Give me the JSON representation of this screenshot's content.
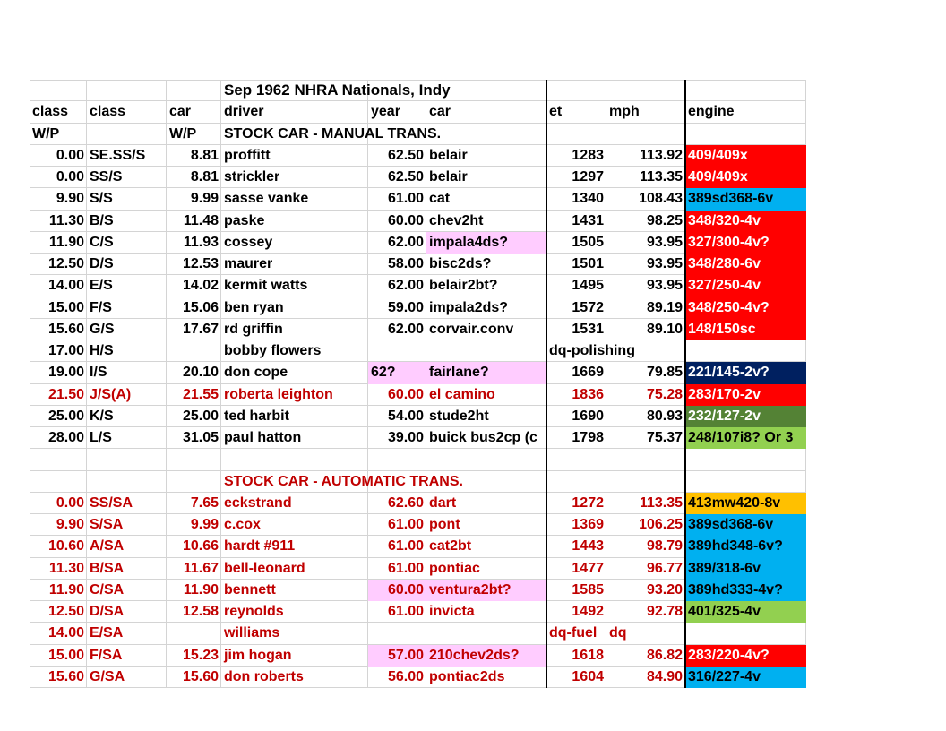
{
  "table": {
    "rows": [
      {
        "cells": [
          null,
          null,
          null,
          "Sep 1962 NHRA Nationals, Indy",
          null,
          null,
          null,
          null,
          null
        ]
      },
      {
        "cells": [
          "class",
          "class",
          "car",
          "driver",
          "year",
          "car",
          "et",
          "mph",
          "engine"
        ]
      },
      {
        "cells": [
          "W/P",
          null,
          "W/P",
          "STOCK CAR - MANUAL TRANS.",
          null,
          null,
          null,
          null,
          null
        ]
      },
      {
        "cells": [
          "0.00",
          "SE.SS/S",
          "8.81",
          "proffitt",
          "62.50",
          "belair",
          "1283",
          "113.92",
          {
            "text": "409/409x",
            "fill": "#ff0000",
            "color": "#ffffff"
          }
        ]
      },
      {
        "cells": [
          "0.00",
          "SS/S",
          "8.81",
          "strickler",
          "62.50",
          "belair",
          "1297",
          "113.35",
          {
            "text": "409/409x",
            "fill": "#ff0000",
            "color": "#ffffff"
          }
        ]
      },
      {
        "cells": [
          "9.90",
          "S/S",
          "9.99",
          "sasse vanke",
          "61.00",
          "cat",
          "1340",
          "108.43",
          {
            "text": "389sd368-6v",
            "fill": "#00b0f0",
            "color": "#000000"
          }
        ]
      },
      {
        "cells": [
          "11.30",
          "B/S",
          "11.48",
          "paske",
          "60.00",
          "chev2ht",
          "1431",
          "98.25",
          {
            "text": "348/320-4v",
            "fill": "#ff0000",
            "color": "#ffffff"
          }
        ]
      },
      {
        "cells": [
          "11.90",
          "C/S",
          "11.93",
          "cossey",
          "62.00",
          {
            "text": "impala4ds?",
            "fill": "#ffccff"
          },
          "1505",
          "93.95",
          {
            "text": "327/300-4v?",
            "fill": "#ff0000",
            "color": "#ffffff"
          }
        ]
      },
      {
        "cells": [
          "12.50",
          "D/S",
          "12.53",
          "maurer",
          "58.00",
          "bisc2ds?",
          "1501",
          "93.95",
          {
            "text": "348/280-6v",
            "fill": "#ff0000",
            "color": "#ffffff"
          }
        ]
      },
      {
        "cells": [
          "14.00",
          "E/S",
          "14.02",
          "kermit watts",
          "62.00",
          "belair2bt?",
          "1495",
          "93.95",
          {
            "text": "327/250-4v",
            "fill": "#ff0000",
            "color": "#ffffff"
          }
        ]
      },
      {
        "cells": [
          "15.00",
          "F/S",
          "15.06",
          "ben ryan",
          "59.00",
          "impala2ds?",
          "1572",
          "89.19",
          {
            "text": "348/250-4v?",
            "fill": "#ff0000",
            "color": "#ffffff"
          }
        ]
      },
      {
        "cells": [
          "15.60",
          "G/S",
          "17.67",
          "rd griffin",
          "62.00",
          "corvair.conv",
          "1531",
          "89.10",
          {
            "text": "148/150sc",
            "fill": "#ff0000",
            "color": "#ffffff"
          }
        ]
      },
      {
        "cells": [
          "17.00",
          "H/S",
          null,
          "bobby flowers",
          null,
          null,
          "dq-polishing",
          null,
          null
        ]
      },
      {
        "cells": [
          "19.00",
          "I/S",
          "20.10",
          "don cope",
          {
            "text": "62?",
            "fill": "#ffccff"
          },
          {
            "text": "fairlane?",
            "fill": "#ffccff"
          },
          "1669",
          "79.85",
          {
            "text": "221/145-2v?",
            "fill": "#002060",
            "color": "#ffffff"
          }
        ]
      },
      {
        "cells": [
          "21.50",
          "J/S(A)",
          "21.55",
          "roberta leighton",
          "60.00",
          "el camino",
          "1836",
          "75.28",
          {
            "text": "283/170-2v",
            "fill": "#ff0000",
            "color": "#ffffff"
          }
        ],
        "color": "#c00000"
      },
      {
        "cells": [
          "25.00",
          "K/S",
          "25.00",
          "ted harbit",
          "54.00",
          "stude2ht",
          "1690",
          "80.93",
          {
            "text": "232/127-2v",
            "fill": "#548235",
            "color": "#ffffff"
          }
        ]
      },
      {
        "cells": [
          "28.00",
          "L/S",
          "31.05",
          "paul hatton",
          "39.00",
          "buick bus2cp (c",
          "1798",
          "75.37",
          {
            "text": "248/107i8? Or 3",
            "fill": "#92d050",
            "color": "#000000"
          }
        ]
      },
      {
        "cells": [
          null,
          null,
          null,
          null,
          null,
          null,
          null,
          null,
          null
        ]
      },
      {
        "cells": [
          null,
          null,
          null,
          "STOCK CAR - AUTOMATIC TRANS.",
          null,
          null,
          null,
          null,
          null
        ],
        "color": "#c00000"
      },
      {
        "cells": [
          "0.00",
          "SS/SA",
          "7.65",
          "eckstrand",
          "62.60",
          "dart",
          "1272",
          "113.35",
          {
            "text": "413mw420-8v",
            "fill": "#ffc000",
            "color": "#000000"
          }
        ],
        "color": "#c00000"
      },
      {
        "cells": [
          "9.90",
          "S/SA",
          "9.99",
          "c.cox",
          "61.00",
          "pont",
          "1369",
          "106.25",
          {
            "text": "389sd368-6v",
            "fill": "#00b0f0",
            "color": "#000000"
          }
        ],
        "color": "#c00000"
      },
      {
        "cells": [
          "10.60",
          "A/SA",
          "10.66",
          "hardt #911",
          "61.00",
          "cat2bt",
          "1443",
          "98.79",
          {
            "text": "389hd348-6v?",
            "fill": "#00b0f0",
            "color": "#000000"
          }
        ],
        "color": "#c00000"
      },
      {
        "cells": [
          "11.30",
          "B/SA",
          "11.67",
          "bell-leonard",
          "61.00",
          "pontiac",
          "1477",
          "96.77",
          {
            "text": "389/318-6v",
            "fill": "#00b0f0",
            "color": "#000000"
          }
        ],
        "color": "#c00000"
      },
      {
        "cells": [
          "11.90",
          "C/SA",
          "11.90",
          "bennett",
          {
            "text": "60.00",
            "fill": "#ffccff"
          },
          {
            "text": "ventura2bt?",
            "fill": "#ffccff"
          },
          "1585",
          "93.20",
          {
            "text": "389hd333-4v?",
            "fill": "#00b0f0",
            "color": "#000000"
          }
        ],
        "color": "#c00000"
      },
      {
        "cells": [
          "12.50",
          "D/SA",
          "12.58",
          "reynolds",
          "61.00",
          "invicta",
          "1492",
          "92.78",
          {
            "text": "401/325-4v",
            "fill": "#92d050",
            "color": "#000000"
          }
        ],
        "color": "#c00000"
      },
      {
        "cells": [
          "14.00",
          "E/SA",
          null,
          "williams",
          null,
          null,
          "dq-fuel",
          "dq",
          null
        ],
        "color": "#c00000"
      },
      {
        "cells": [
          "15.00",
          "F/SA",
          "15.23",
          "jim hogan",
          {
            "text": "57.00",
            "fill": "#ffccff"
          },
          {
            "text": "210chev2ds?",
            "fill": "#ffccff"
          },
          "1618",
          "86.82",
          {
            "text": "283/220-4v?",
            "fill": "#ff0000",
            "color": "#ffffff"
          }
        ],
        "color": "#c00000"
      },
      {
        "cells": [
          "15.60",
          "G/SA",
          "15.60",
          "don roberts",
          "56.00",
          "pontiac2ds",
          "1604",
          "84.90",
          {
            "text": "316/227-4v",
            "fill": "#00b0f0",
            "color": "#000000"
          }
        ],
        "color": "#c00000"
      }
    ]
  }
}
